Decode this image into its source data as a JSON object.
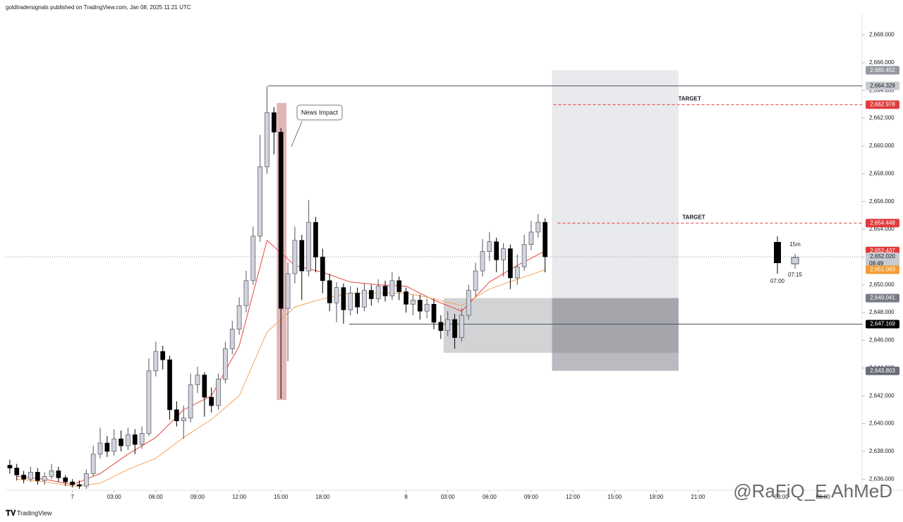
{
  "chart_data": {
    "type": "candlestick",
    "title": "goldtradersignals published on TradingView.com, Jan 08, 2025 11:21 UTC",
    "x": [
      -4.5,
      -4,
      -3.5,
      -3,
      -2.5,
      -2,
      -1.5,
      -1,
      -0.5,
      0,
      0.5,
      1,
      1.5,
      2,
      2.5,
      3,
      3.5,
      4,
      4.5,
      5,
      5.5,
      6,
      6.5,
      7,
      7.5,
      8,
      8.5,
      9,
      9.5,
      10,
      10.5,
      11,
      11.5,
      12,
      12.5,
      13,
      13.5,
      14,
      14.5,
      15,
      15.5,
      16,
      16.5,
      17,
      17.5,
      18,
      18.5,
      19,
      19.5,
      20,
      20.5,
      21,
      21.5,
      22,
      22.5,
      23,
      23.5,
      24,
      24.5,
      25,
      25.5,
      26,
      26.5,
      27,
      27.5,
      28,
      28.5,
      29,
      29.5,
      30,
      30.5,
      31,
      31.5,
      32,
      32.5,
      33,
      33.5,
      34
    ],
    "candles": [
      [
        2637.0,
        2637.4,
        2636.4,
        2636.8
      ],
      [
        2636.8,
        2637.1,
        2635.9,
        2636.3
      ],
      [
        2636.3,
        2636.6,
        2635.7,
        2636.0
      ],
      [
        2636.0,
        2636.9,
        2635.8,
        2636.5
      ],
      [
        2636.5,
        2636.8,
        2635.6,
        2635.9
      ],
      [
        2635.9,
        2636.5,
        2635.6,
        2636.2
      ],
      [
        2636.2,
        2637.1,
        2636.0,
        2636.6
      ],
      [
        2636.6,
        2636.9,
        2635.8,
        2636.1
      ],
      [
        2636.1,
        2636.3,
        2635.5,
        2635.8
      ],
      [
        2635.8,
        2636.0,
        2635.4,
        2635.6
      ],
      [
        2635.6,
        2635.9,
        2635.3,
        2635.5
      ],
      [
        2635.5,
        2636.7,
        2635.3,
        2636.4
      ],
      [
        2636.4,
        2638.4,
        2636.2,
        2637.8
      ],
      [
        2637.8,
        2639.7,
        2637.5,
        2638.6
      ],
      [
        2638.6,
        2639.1,
        2637.6,
        2638.0
      ],
      [
        2638.0,
        2639.6,
        2637.7,
        2638.9
      ],
      [
        2638.9,
        2639.5,
        2638.0,
        2638.4
      ],
      [
        2638.4,
        2639.7,
        2638.1,
        2639.2
      ],
      [
        2639.2,
        2639.6,
        2637.8,
        2638.5
      ],
      [
        2638.5,
        2639.8,
        2638.2,
        2639.3
      ],
      [
        2639.3,
        2644.7,
        2639.1,
        2643.8
      ],
      [
        2643.8,
        2645.9,
        2643.4,
        2645.2
      ],
      [
        2645.2,
        2645.6,
        2643.9,
        2644.6
      ],
      [
        2644.6,
        2644.9,
        2640.3,
        2641.0
      ],
      [
        2641.0,
        2641.6,
        2639.8,
        2640.2
      ],
      [
        2640.2,
        2641.3,
        2638.9,
        2640.4
      ],
      [
        2640.4,
        2643.6,
        2640.1,
        2642.8
      ],
      [
        2642.8,
        2644.1,
        2642.2,
        2643.5
      ],
      [
        2643.5,
        2643.7,
        2640.5,
        2641.9
      ],
      [
        2641.9,
        2642.6,
        2640.8,
        2641.3
      ],
      [
        2641.3,
        2643.6,
        2641.0,
        2643.2
      ],
      [
        2643.2,
        2645.9,
        2642.9,
        2645.4
      ],
      [
        2645.4,
        2647.4,
        2645.0,
        2646.8
      ],
      [
        2646.8,
        2649.1,
        2646.4,
        2648.5
      ],
      [
        2648.5,
        2651.0,
        2648.0,
        2650.3
      ],
      [
        2650.3,
        2654.2,
        2650.0,
        2653.5
      ],
      [
        2653.5,
        2660.8,
        2653.1,
        2658.5
      ],
      [
        2658.5,
        2664.3,
        2658.0,
        2662.4
      ],
      [
        2662.4,
        2662.8,
        2659.4,
        2661.0
      ],
      [
        2661.0,
        2661.3,
        2641.8,
        2648.3
      ],
      [
        2648.3,
        2651.6,
        2644.5,
        2650.8
      ],
      [
        2650.8,
        2654.2,
        2650.1,
        2653.2
      ],
      [
        2653.2,
        2653.6,
        2648.9,
        2651.0
      ],
      [
        2651.0,
        2656.1,
        2650.6,
        2654.5
      ],
      [
        2654.5,
        2654.9,
        2650.9,
        2652.0
      ],
      [
        2652.0,
        2652.6,
        2649.4,
        2650.3
      ],
      [
        2650.3,
        2650.8,
        2648.1,
        2648.7
      ],
      [
        2648.7,
        2650.2,
        2647.3,
        2649.8
      ],
      [
        2649.8,
        2650.1,
        2647.2,
        2648.2
      ],
      [
        2648.2,
        2649.9,
        2647.8,
        2649.4
      ],
      [
        2649.4,
        2649.8,
        2647.9,
        2648.4
      ],
      [
        2648.4,
        2650.1,
        2648.1,
        2649.6
      ],
      [
        2649.6,
        2650.0,
        2648.5,
        2649.0
      ],
      [
        2649.0,
        2650.4,
        2648.7,
        2649.9
      ],
      [
        2649.9,
        2650.3,
        2648.8,
        2649.2
      ],
      [
        2649.2,
        2650.9,
        2648.9,
        2650.3
      ],
      [
        2650.3,
        2650.6,
        2648.9,
        2649.5
      ],
      [
        2649.5,
        2649.8,
        2648.0,
        2648.6
      ],
      [
        2648.6,
        2649.3,
        2647.8,
        2648.9
      ],
      [
        2648.9,
        2649.3,
        2647.5,
        2648.1
      ],
      [
        2648.1,
        2649.0,
        2647.6,
        2648.6
      ],
      [
        2648.6,
        2649.0,
        2646.8,
        2647.3
      ],
      [
        2647.3,
        2647.8,
        2646.1,
        2646.7
      ],
      [
        2646.7,
        2648.1,
        2646.3,
        2647.5
      ],
      [
        2647.5,
        2647.9,
        2645.4,
        2646.2
      ],
      [
        2646.2,
        2648.3,
        2645.9,
        2647.8
      ],
      [
        2647.8,
        2650.0,
        2647.5,
        2649.6
      ],
      [
        2649.6,
        2651.6,
        2649.2,
        2651.0
      ],
      [
        2651.0,
        2653.3,
        2650.6,
        2652.4
      ],
      [
        2652.4,
        2653.8,
        2651.7,
        2653.1
      ],
      [
        2653.1,
        2653.4,
        2650.9,
        2651.8
      ],
      [
        2651.8,
        2653.0,
        2650.6,
        2652.6
      ],
      [
        2652.6,
        2652.9,
        2649.7,
        2650.5
      ],
      [
        2650.5,
        2652.2,
        2650.0,
        2651.3
      ],
      [
        2651.3,
        2653.6,
        2651.0,
        2652.9
      ],
      [
        2652.9,
        2654.6,
        2652.5,
        2653.8
      ],
      [
        2653.8,
        2655.1,
        2653.4,
        2654.5
      ],
      [
        2654.5,
        2654.8,
        2650.9,
        2652.02
      ]
    ],
    "up_color": "#d1d4dc",
    "down_color": "#000000",
    "lines": [
      {
        "color": "#e8463f",
        "x": [
          -4,
          -2,
          0,
          2,
          4,
          6,
          8,
          10,
          12,
          14,
          16,
          18,
          20,
          22,
          24,
          26,
          28,
          30,
          32,
          34
        ],
        "values": [
          2636.2,
          2636.0,
          2635.6,
          2636.4,
          2637.8,
          2639.0,
          2641.0,
          2642.0,
          2645.6,
          2653.2,
          2651.4,
          2650.9,
          2650.2,
          2650.0,
          2649.9,
          2648.9,
          2648.1,
          2650.2,
          2651.4,
          2652.437
        ]
      },
      {
        "color": "#f5a55a",
        "x": [
          -4,
          -2,
          0,
          2,
          4,
          6,
          8,
          10,
          12,
          14,
          16,
          18,
          20,
          22,
          24,
          26,
          28,
          30,
          32,
          34
        ],
        "values": [
          2636.0,
          2635.8,
          2635.5,
          2635.7,
          2636.7,
          2637.5,
          2639.0,
          2640.3,
          2642.0,
          2646.6,
          2648.4,
          2649.0,
          2649.4,
          2649.4,
          2649.4,
          2649.0,
          2648.5,
          2649.7,
          2650.4,
          2651.083
        ]
      }
    ],
    "xlim": [
      -4.8,
      56.8
    ],
    "ylim": [
      2635.2,
      2669.5
    ],
    "grid": false,
    "xticks": [
      {
        "value": 0,
        "label": "7"
      },
      {
        "value": 3,
        "label": "03:00"
      },
      {
        "value": 6,
        "label": "06:00"
      },
      {
        "value": 9,
        "label": "09:00"
      },
      {
        "value": 12,
        "label": "12:00"
      },
      {
        "value": 15,
        "label": "15:00"
      },
      {
        "value": 18,
        "label": "18:00"
      },
      {
        "value": 24,
        "label": "8"
      },
      {
        "value": 27,
        "label": "03:00"
      },
      {
        "value": 30,
        "label": "06:00"
      },
      {
        "value": 33,
        "label": "09:00"
      },
      {
        "value": 36,
        "label": "12:00"
      },
      {
        "value": 39,
        "label": "15:00"
      },
      {
        "value": 42,
        "label": "18:00"
      },
      {
        "value": 45,
        "label": "21:00"
      },
      {
        "value": 51,
        "label": "03:00"
      },
      {
        "value": 54,
        "label": "06:00"
      }
    ],
    "yticks": [
      {
        "value": 2636,
        "label": "2,636.000"
      },
      {
        "value": 2638,
        "label": "2,638.000"
      },
      {
        "value": 2640,
        "label": "2,640.000"
      },
      {
        "value": 2642,
        "label": "2,642.000"
      },
      {
        "value": 2644,
        "label": "2,644.000"
      },
      {
        "value": 2646,
        "label": "2,646.000"
      },
      {
        "value": 2648,
        "label": "2,648.000"
      },
      {
        "value": 2650,
        "label": "2,650.000"
      },
      {
        "value": 2652,
        "label": "2,652.000"
      },
      {
        "value": 2654,
        "label": "2,654.000"
      },
      {
        "value": 2656,
        "label": "2,656.000"
      },
      {
        "value": 2658,
        "label": "2,658.000"
      },
      {
        "value": 2660,
        "label": "2,660.000"
      },
      {
        "value": 2662,
        "label": "2,662.000"
      },
      {
        "value": 2664,
        "label": "2,664.000"
      },
      {
        "value": 2666,
        "label": "2,666.000"
      },
      {
        "value": 2668,
        "label": "2,668.000"
      }
    ],
    "zones": [
      {
        "x": [
          34.5,
          43.6
        ],
        "y": [
          2649.041,
          2665.452
        ],
        "color": "#e9eaee"
      },
      {
        "x": [
          34.5,
          43.6
        ],
        "y": [
          2643.803,
          2649.041
        ],
        "color": "#b9bbc1"
      },
      {
        "x": [
          26.7,
          43.6
        ],
        "y": [
          2645.1,
          2649.041
        ],
        "color": "#7e8088"
      },
      {
        "x": [
          14.7,
          15.4
        ],
        "y": [
          2641.7,
          2663.1
        ],
        "color": "#e2b7b7"
      }
    ],
    "levels": [
      {
        "value": 2664.329,
        "x_start": 14.06,
        "color": "#50535e",
        "style": "solid"
      },
      {
        "value": 2662.978,
        "x_start": 34.6,
        "color": "#e03c3c",
        "style": "dashed",
        "text": "TARGET"
      },
      {
        "value": 2654.448,
        "x_start": 34.9,
        "color": "#e03c3c",
        "style": "dashed",
        "text": "TARGET"
      },
      {
        "value": 2647.169,
        "x_start": 19.9,
        "color": "#50535e",
        "style": "solid"
      },
      {
        "value": 2652.02,
        "x_start": -4.8,
        "color": "#9598a1",
        "style": "dotted"
      }
    ],
    "price_labels": [
      {
        "value": 2665.452,
        "label": "2,665.452",
        "color": "#9598a1"
      },
      {
        "value": 2664.329,
        "label": "2,664.329",
        "color": "#c8cad0"
      },
      {
        "value": 2662.978,
        "label": "2,662.978",
        "color": "#e03c3c"
      },
      {
        "value": 2654.448,
        "label": "2,654.448",
        "color": "#e03c3c"
      },
      {
        "value": 2652.437,
        "label": "2,652.437",
        "color": "#e03c3c"
      },
      {
        "value": 2652.02,
        "label": "2,652.020",
        "color": "#c8cad0",
        "countdown": "08:49"
      },
      {
        "value": 2651.083,
        "label": "2,651.083",
        "color": "#f39c34"
      },
      {
        "value": 2649.041,
        "label": "2,649.041",
        "color": "#787b86"
      },
      {
        "value": 2647.169,
        "label": "2,647.169",
        "color": "#000000"
      },
      {
        "value": 2643.803,
        "label": "2,643.803",
        "color": "#6a6d78"
      }
    ],
    "annotation": "News Impact",
    "widget": {
      "interval": "15m",
      "times": [
        "07:00",
        "07:15"
      ]
    },
    "branding": "TradingView",
    "watermark": "@RaFiQ_E AhMeD"
  }
}
